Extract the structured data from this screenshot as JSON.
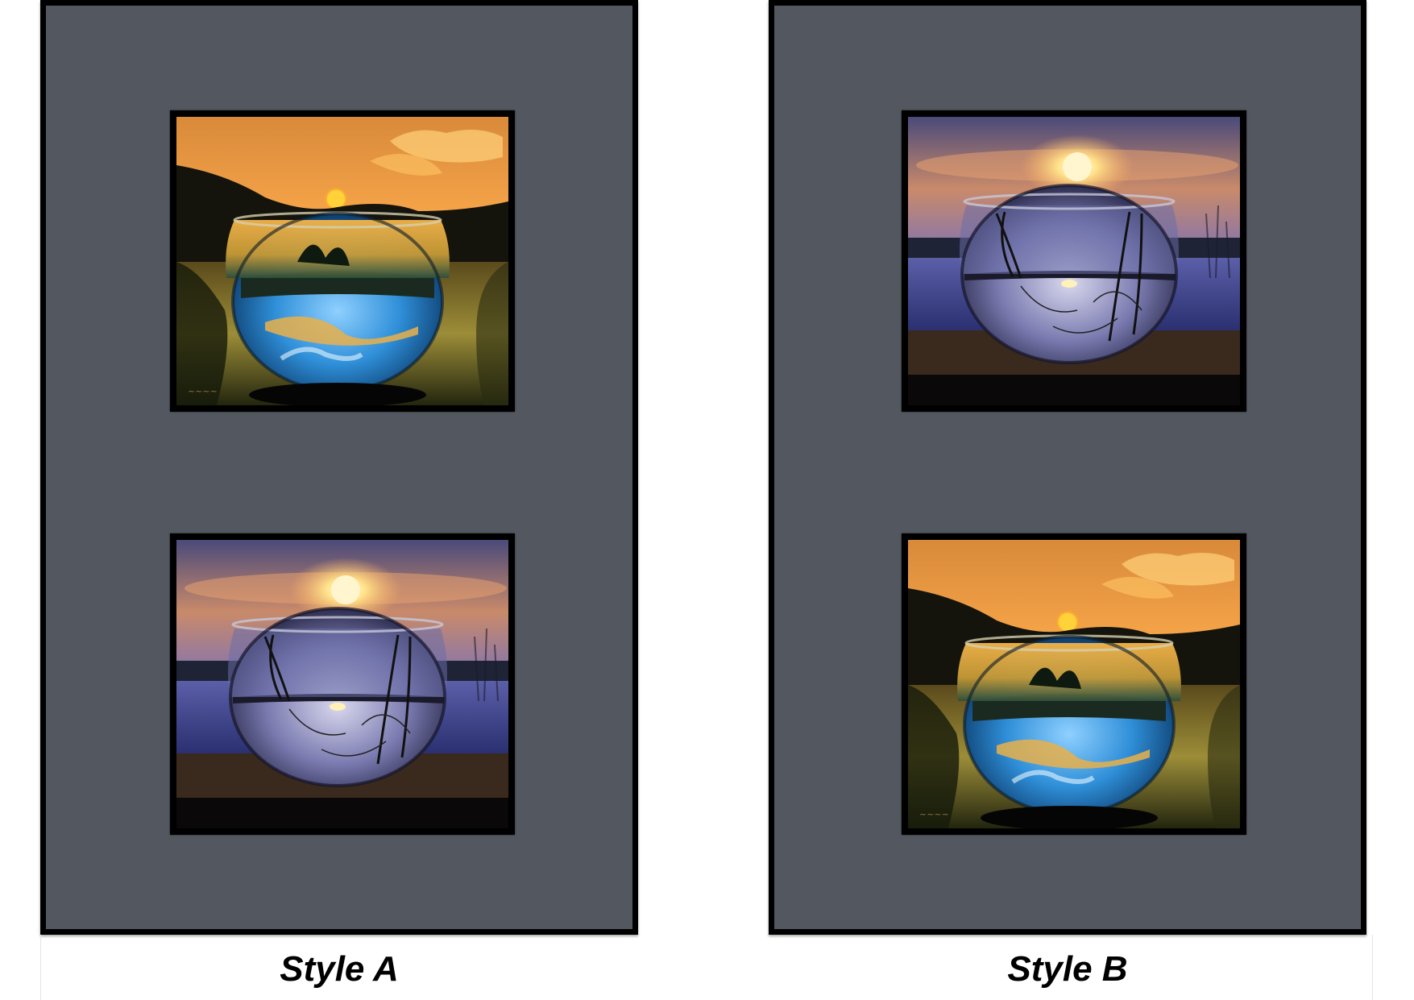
{
  "styles": [
    {
      "caption": "Style A",
      "photos": [
        "golden-sunset-bowl",
        "purple-sunset-bowl"
      ]
    },
    {
      "caption": "Style B",
      "photos": [
        "purple-sunset-bowl",
        "golden-sunset-bowl"
      ]
    }
  ],
  "colors": {
    "mat": "#535860",
    "frame": "#000000",
    "golden_sky": "#f2a14a",
    "purple_sky": "#6c6a9c"
  }
}
